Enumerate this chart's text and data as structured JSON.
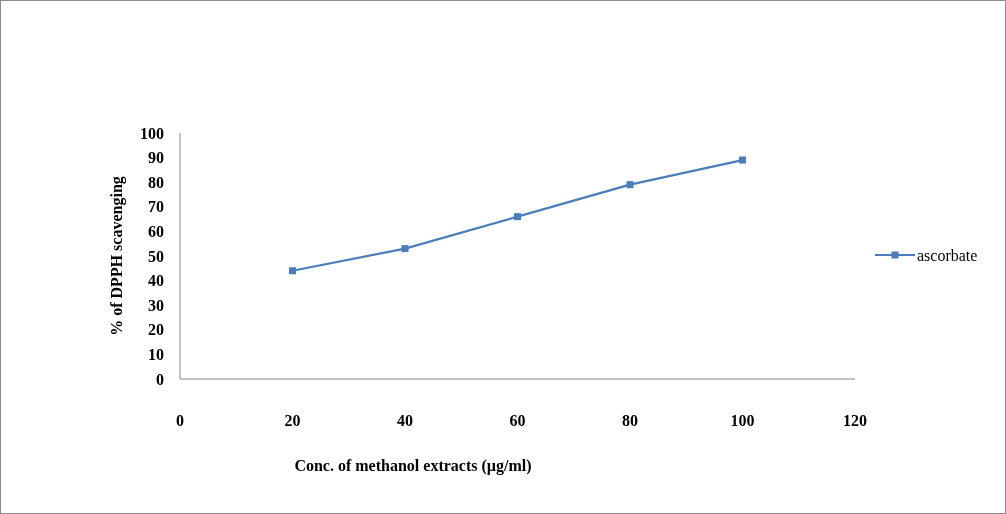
{
  "chart_data": {
    "type": "line",
    "xlabel": "Conc. of  methanol extracts (µg/ml)",
    "ylabel": "% of DPPH scavenging",
    "x": [
      20,
      40,
      60,
      80,
      100
    ],
    "series": [
      {
        "name": "ascorbate",
        "color": "#4a7ebb",
        "values": [
          44,
          53,
          66,
          79,
          89
        ]
      }
    ],
    "xlim": [
      0,
      120
    ],
    "xticks": [
      0,
      20,
      40,
      60,
      80,
      100,
      120
    ],
    "ylim": [
      0,
      100
    ],
    "yticks": [
      0,
      10,
      20,
      30,
      40,
      50,
      60,
      70,
      80,
      90,
      100
    ],
    "grid": false,
    "legend": "right",
    "marker": "square",
    "line_style": "solid"
  }
}
